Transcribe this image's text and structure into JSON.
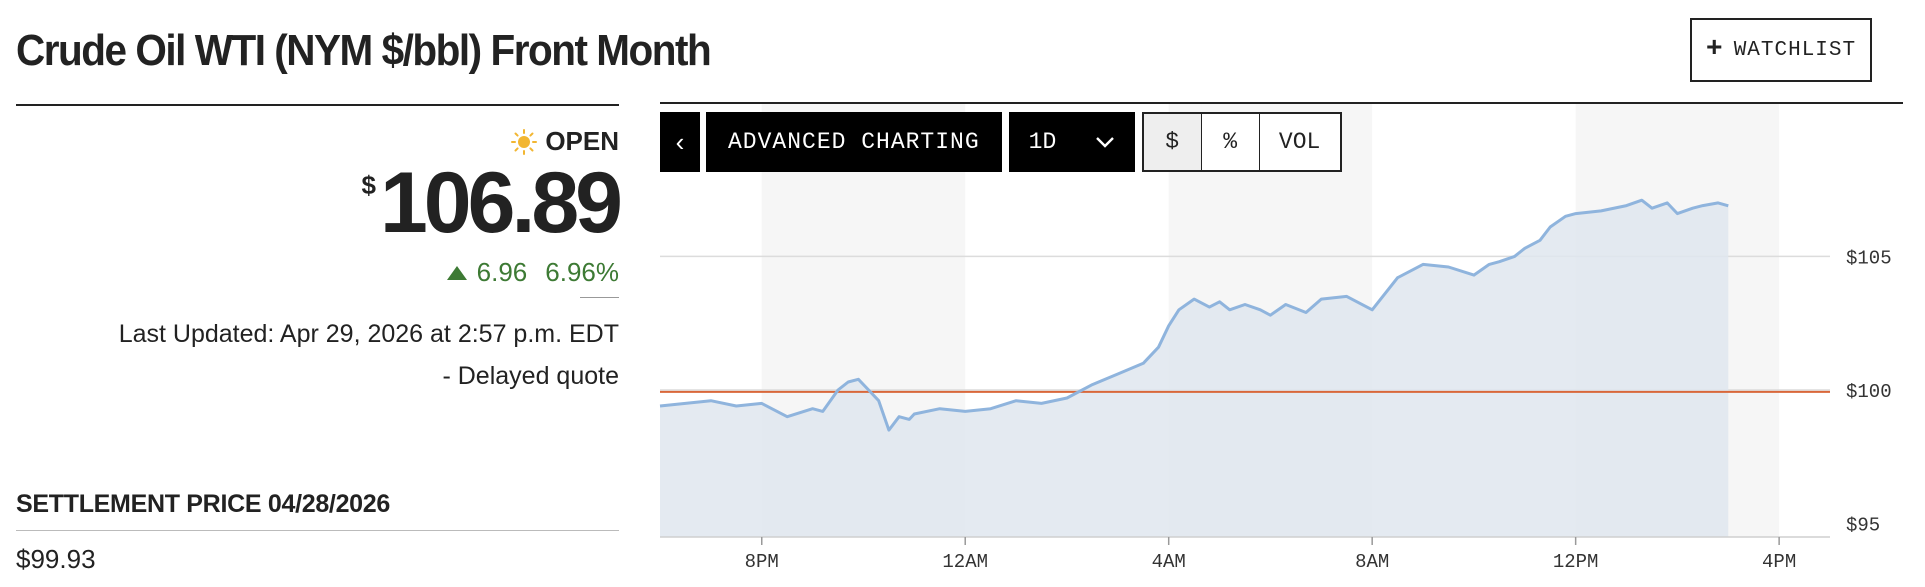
{
  "header": {
    "title": "Crude Oil WTI (NYM $/bbl) Front Month",
    "watchlist_plus": "+",
    "watchlist_label": "WATCHLIST"
  },
  "quote": {
    "status_icon": "sun-icon",
    "status": "OPEN",
    "currency_symbol": "$",
    "price": "106.89",
    "change": "6.96",
    "change_percent": "6.96%",
    "last_updated": "Last Updated: Apr 29, 2026 at 2:57 p.m. EDT",
    "delayed": "-  Delayed quote",
    "settlement_label": "SETTLEMENT PRICE 04/28/2026",
    "settlement_value": "$99.93"
  },
  "toolbar": {
    "back_label": "‹",
    "advanced_label": "ADVANCED CHARTING",
    "period_label": "1D",
    "options": [
      "$",
      "%",
      "VOL"
    ],
    "active_option": "$"
  },
  "colors": {
    "line": "#8fb4dd",
    "area": "#dfe6ee",
    "reference_line": "#d9673a",
    "up": "#3d7a34",
    "band": "#f6f6f6"
  },
  "chart_data": {
    "type": "area",
    "x_ticks": [
      "8PM",
      "12AM",
      "4AM",
      "8AM",
      "12PM",
      "4PM"
    ],
    "y_ticks": [
      95,
      100,
      105
    ],
    "y_tick_labels": [
      "$95",
      "$100",
      "$105"
    ],
    "ylim": [
      94.5,
      110.7
    ],
    "xlim": [
      -2,
      21
    ],
    "reference_line": {
      "value": 99.93
    },
    "series": [
      {
        "x": [
          -2.0,
          -1.5,
          -1.0,
          -0.5,
          0.0,
          0.5,
          1.0,
          1.2,
          1.5,
          1.7,
          1.9,
          2.1,
          2.3,
          2.5,
          2.7,
          2.9,
          3.0,
          3.5,
          4.0,
          4.5,
          5.0,
          5.5,
          6.0,
          6.5,
          7.0,
          7.5,
          7.8,
          8.0,
          8.2,
          8.5,
          8.8,
          9.0,
          9.2,
          9.5,
          9.8,
          10.0,
          10.3,
          10.7,
          11.0,
          11.5,
          12.0,
          12.5,
          13.0,
          13.5,
          14.0,
          14.3,
          14.5,
          14.8,
          15.0,
          15.3,
          15.5,
          15.8,
          16.0,
          16.5,
          17.0,
          17.3,
          17.5,
          17.8,
          18.0,
          18.3,
          18.5,
          18.8,
          19.0
        ],
        "y": [
          99.4,
          99.5,
          99.6,
          99.4,
          99.5,
          99.0,
          99.3,
          99.2,
          100.0,
          100.3,
          100.4,
          100.0,
          99.6,
          98.5,
          99.0,
          98.9,
          99.1,
          99.3,
          99.2,
          99.3,
          99.6,
          99.5,
          99.7,
          100.2,
          100.6,
          101.0,
          101.6,
          102.4,
          103.0,
          103.4,
          103.1,
          103.3,
          103.0,
          103.2,
          103.0,
          102.8,
          103.2,
          102.9,
          103.4,
          103.5,
          103.0,
          104.2,
          104.7,
          104.6,
          104.3,
          104.7,
          104.8,
          105.0,
          105.3,
          105.6,
          106.1,
          106.5,
          106.6,
          106.7,
          106.9,
          107.1,
          106.8,
          107.0,
          106.6,
          106.8,
          106.9,
          107.0,
          106.89
        ]
      }
    ]
  }
}
